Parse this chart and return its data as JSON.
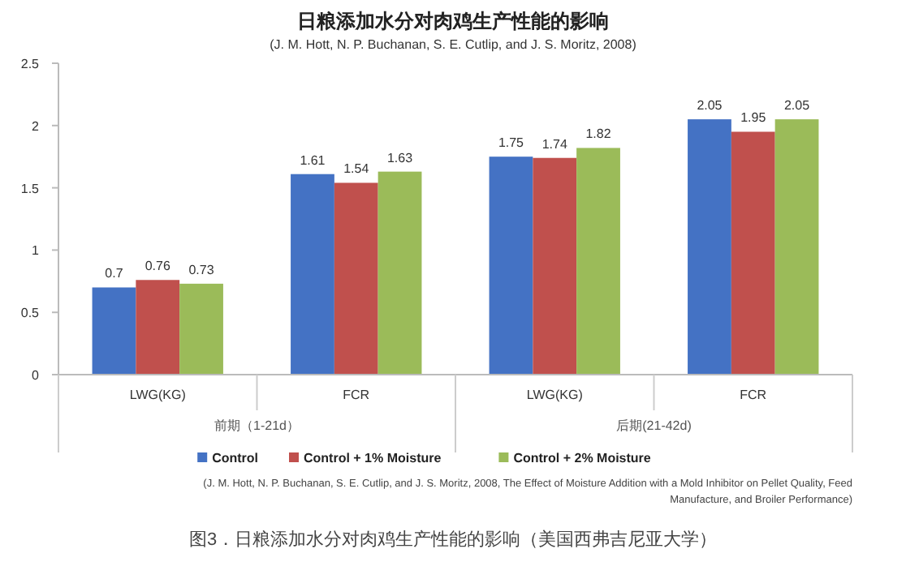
{
  "chart_data": {
    "type": "bar",
    "title": "日粮添加水分对肉鸡生产性能的影响",
    "subtitle": "(J. M. Hott, N. P. Buchanan, S. E. Cutlip, and J. S. Moritz, 2008)",
    "categories": [
      "LWG(KG)",
      "FCR",
      "LWG(KG)",
      "FCR"
    ],
    "series": [
      {
        "name": "Control",
        "color": "#4472c4",
        "values": [
          0.7,
          1.61,
          1.75,
          2.05
        ]
      },
      {
        "name": "Control + 1% Moisture",
        "color": "#c0504d",
        "values": [
          0.76,
          1.54,
          1.74,
          1.95
        ]
      },
      {
        "name": "Control + 2% Moisture",
        "color": "#9bbb59",
        "values": [
          0.73,
          1.63,
          1.82,
          2.05
        ]
      }
    ],
    "ylim": [
      0,
      2.5
    ],
    "yticks": [
      0,
      0.5,
      1,
      1.5,
      2,
      2.5
    ],
    "data_labels": true,
    "legend": "bottom",
    "grid": false,
    "annotations": [
      "前期（1-21d）",
      "后期(21-42d)",
      "(J. M. Hott, N. P. Buchanan, S. E. Cutlip, and J. S. Moritz, 2008, The Effect of Moisture Addition with a Mold Inhibitor on Pellet Quality, Feed Manufacture, and Broiler Performance)",
      "图3．日粮添加水分对肉鸡生产性能的影响（美国西弗吉尼亚大学）"
    ]
  }
}
